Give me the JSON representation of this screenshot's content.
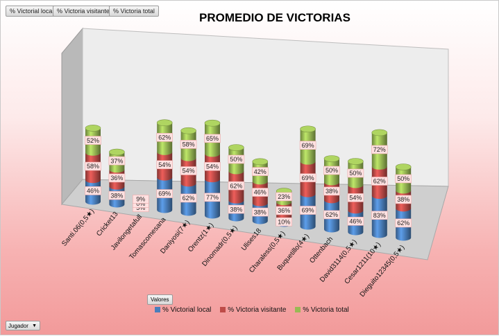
{
  "field_buttons": [
    "% Victorial local",
    "% Victoria visitante",
    "% Victoria total"
  ],
  "valores_label": "Valores",
  "jugador_label": "Jugador",
  "chart_data": {
    "type": "bar",
    "stacked": true,
    "three_d": true,
    "title": "PROMEDIO DE VICTORIAS",
    "xlabel": "",
    "ylabel": "",
    "legend_position": "bottom",
    "categories": [
      "Santi.06(0,5★)",
      "Cricket13",
      "Javilongetafull",
      "Tomascomesana",
      "Daniyosi(7★)",
      "Orentz(1★)",
      "Dinomadr(0,5★)",
      "Ulises18",
      "Charaless(0,5★)",
      "Buquetillo(4★)",
      "Ottenbach",
      "David3114(0,5★)",
      "Cesar1211(10★)",
      "Dieguito12345(0,5★)"
    ],
    "series": [
      {
        "name": "% Victorial local",
        "color": "#4a7ebb",
        "values": [
          46,
          38,
          5,
          69,
          62,
          77,
          38,
          38,
          10,
          69,
          62,
          46,
          83,
          62
        ]
      },
      {
        "name": "% Victoria visitante",
        "color": "#be4b48",
        "values": [
          58,
          36,
          0,
          54,
          54,
          54,
          62,
          46,
          36,
          69,
          38,
          54,
          62,
          38
        ]
      },
      {
        "name": "% Victoria total",
        "color": "#98b954",
        "values": [
          52,
          37,
          9,
          62,
          58,
          65,
          50,
          42,
          23,
          69,
          50,
          50,
          72,
          50
        ]
      }
    ],
    "data_labels": [
      [
        "46%",
        "58%",
        "52%"
      ],
      [
        "38%",
        "36%",
        "37%"
      ],
      [
        "5%",
        "0%",
        "9%"
      ],
      [
        "69%",
        "54%",
        "62%"
      ],
      [
        "62%",
        "54%",
        "58%"
      ],
      [
        "77%",
        "54%",
        "65%"
      ],
      [
        "38%",
        "62%",
        "50%"
      ],
      [
        "38%",
        "46%",
        "42%"
      ],
      [
        "10%",
        "36%",
        "23%"
      ],
      [
        "69%",
        "69%",
        "69%"
      ],
      [
        "62%",
        "38%",
        "50%"
      ],
      [
        "46%",
        "54%",
        "50%"
      ],
      [
        "83%",
        "62%",
        "72%"
      ],
      [
        "62%",
        "38%",
        "50%"
      ]
    ]
  }
}
